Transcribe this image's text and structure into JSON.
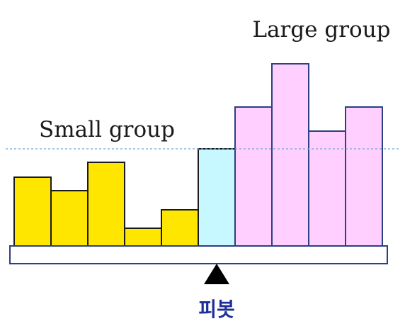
{
  "labels": {
    "small_group": "Small group",
    "large_group": "Large group",
    "pivot": "피봇"
  },
  "bars": [
    {
      "group": "small",
      "value": 97
    },
    {
      "group": "small",
      "value": 78
    },
    {
      "group": "small",
      "value": 118
    },
    {
      "group": "small",
      "value": 25
    },
    {
      "group": "small",
      "value": 51
    },
    {
      "group": "pivot",
      "value": 137
    },
    {
      "group": "large",
      "value": 196
    },
    {
      "group": "large",
      "value": 257
    },
    {
      "group": "large",
      "value": 162
    },
    {
      "group": "large",
      "value": 196
    }
  ],
  "colors": {
    "small": "#ffe600",
    "pivot": "#c8f8ff",
    "large": "#ffd0ff",
    "bar_border": "#1a1a1a",
    "large_border": "#2b3f82",
    "beam_border": "#2b3f82",
    "threshold_line": "#6fa6d6",
    "fulcrum": "#000000"
  },
  "icons": {
    "fulcrum": "triangle-up"
  }
}
